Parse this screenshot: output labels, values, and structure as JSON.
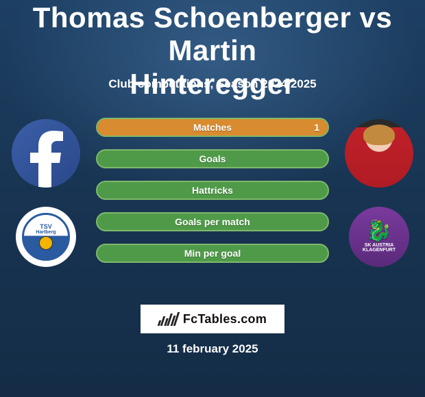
{
  "title_line1": "Thomas Schoenberger vs Martin",
  "title_line2": "Hinteregger",
  "subtitle": "Club competitions, Season 2024/2025",
  "date": "11 february 2025",
  "brand": {
    "name": "FcTables",
    "tld": ".com"
  },
  "colors": {
    "bar_border": "#7fb96b",
    "bar_bg": "#4f9a48",
    "fill_left": "#2f7fd0",
    "fill_right": "#d98b2f",
    "text": "#ffffff"
  },
  "clubs": {
    "left": {
      "name": "TSV Hartberg",
      "abbrev_top": "TSV",
      "abbrev_bot": "Hartberg"
    },
    "right": {
      "name": "SK Austria Klagenfurt",
      "abbrev_top": "SK AUSTRIA",
      "abbrev_bot": "KLAGENFURT"
    }
  },
  "stats": [
    {
      "label": "Matches",
      "left_val": "",
      "right_val": "1",
      "left_pct": 0,
      "right_pct": 100
    },
    {
      "label": "Goals",
      "left_val": "",
      "right_val": "",
      "left_pct": 0,
      "right_pct": 0
    },
    {
      "label": "Hattricks",
      "left_val": "",
      "right_val": "",
      "left_pct": 0,
      "right_pct": 0
    },
    {
      "label": "Goals per match",
      "left_val": "",
      "right_val": "",
      "left_pct": 0,
      "right_pct": 0
    },
    {
      "label": "Min per goal",
      "left_val": "",
      "right_val": "",
      "left_pct": 0,
      "right_pct": 0
    }
  ]
}
